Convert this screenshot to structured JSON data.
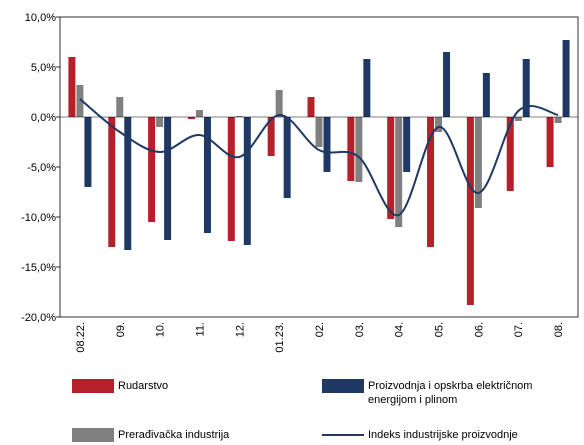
{
  "chart_data": {
    "type": "bar_line",
    "categories": [
      "08.22.",
      "09.",
      "10.",
      "11.",
      "12.",
      "01.23.",
      "02.",
      "03.",
      "04.",
      "05.",
      "06.",
      "07.",
      "08."
    ],
    "series": [
      {
        "name": "Rudarstvo",
        "type": "bar",
        "color": "#b5202a",
        "values": [
          6.0,
          -13.0,
          -10.5,
          -0.2,
          -12.4,
          -3.9,
          2.0,
          -6.4,
          -10.2,
          -13.0,
          -18.8,
          -7.4,
          -5.0
        ]
      },
      {
        "name": "Prerađivačka industrija",
        "type": "bar",
        "color": "#808080",
        "values": [
          3.2,
          2.0,
          -1.0,
          0.7,
          0.1,
          2.7,
          -3.0,
          -6.5,
          -11.0,
          -1.5,
          -9.1,
          -0.4,
          -0.6
        ]
      },
      {
        "name": "Proizvodnja i opskrba električnom energijom i plinom",
        "type": "bar",
        "color": "#1f3864",
        "values": [
          -7.0,
          -13.3,
          -12.3,
          -11.6,
          -12.8,
          -8.1,
          -5.5,
          5.8,
          -5.5,
          6.5,
          4.4,
          5.8,
          7.7
        ]
      },
      {
        "name": "Indeks industrijske proizvodnje",
        "type": "line",
        "color": "#1f3864",
        "values": [
          1.8,
          -1.5,
          -3.5,
          -1.8,
          -4.0,
          0.2,
          -3.3,
          -4.0,
          -9.8,
          -1.0,
          -7.6,
          0.6,
          0.2
        ]
      }
    ],
    "ylim": [
      -20,
      10
    ],
    "yticks": [
      {
        "value": -20,
        "label": "-20,0%"
      },
      {
        "value": -15,
        "label": "-15,0%"
      },
      {
        "value": -10,
        "label": "-10,0%"
      },
      {
        "value": -5,
        "label": "-5,0%"
      },
      {
        "value": 0,
        "label": "0,0%"
      },
      {
        "value": 5,
        "label": "5,0%"
      },
      {
        "value": 10,
        "label": "10,0%"
      }
    ],
    "grid": false,
    "legend": "bottom"
  }
}
